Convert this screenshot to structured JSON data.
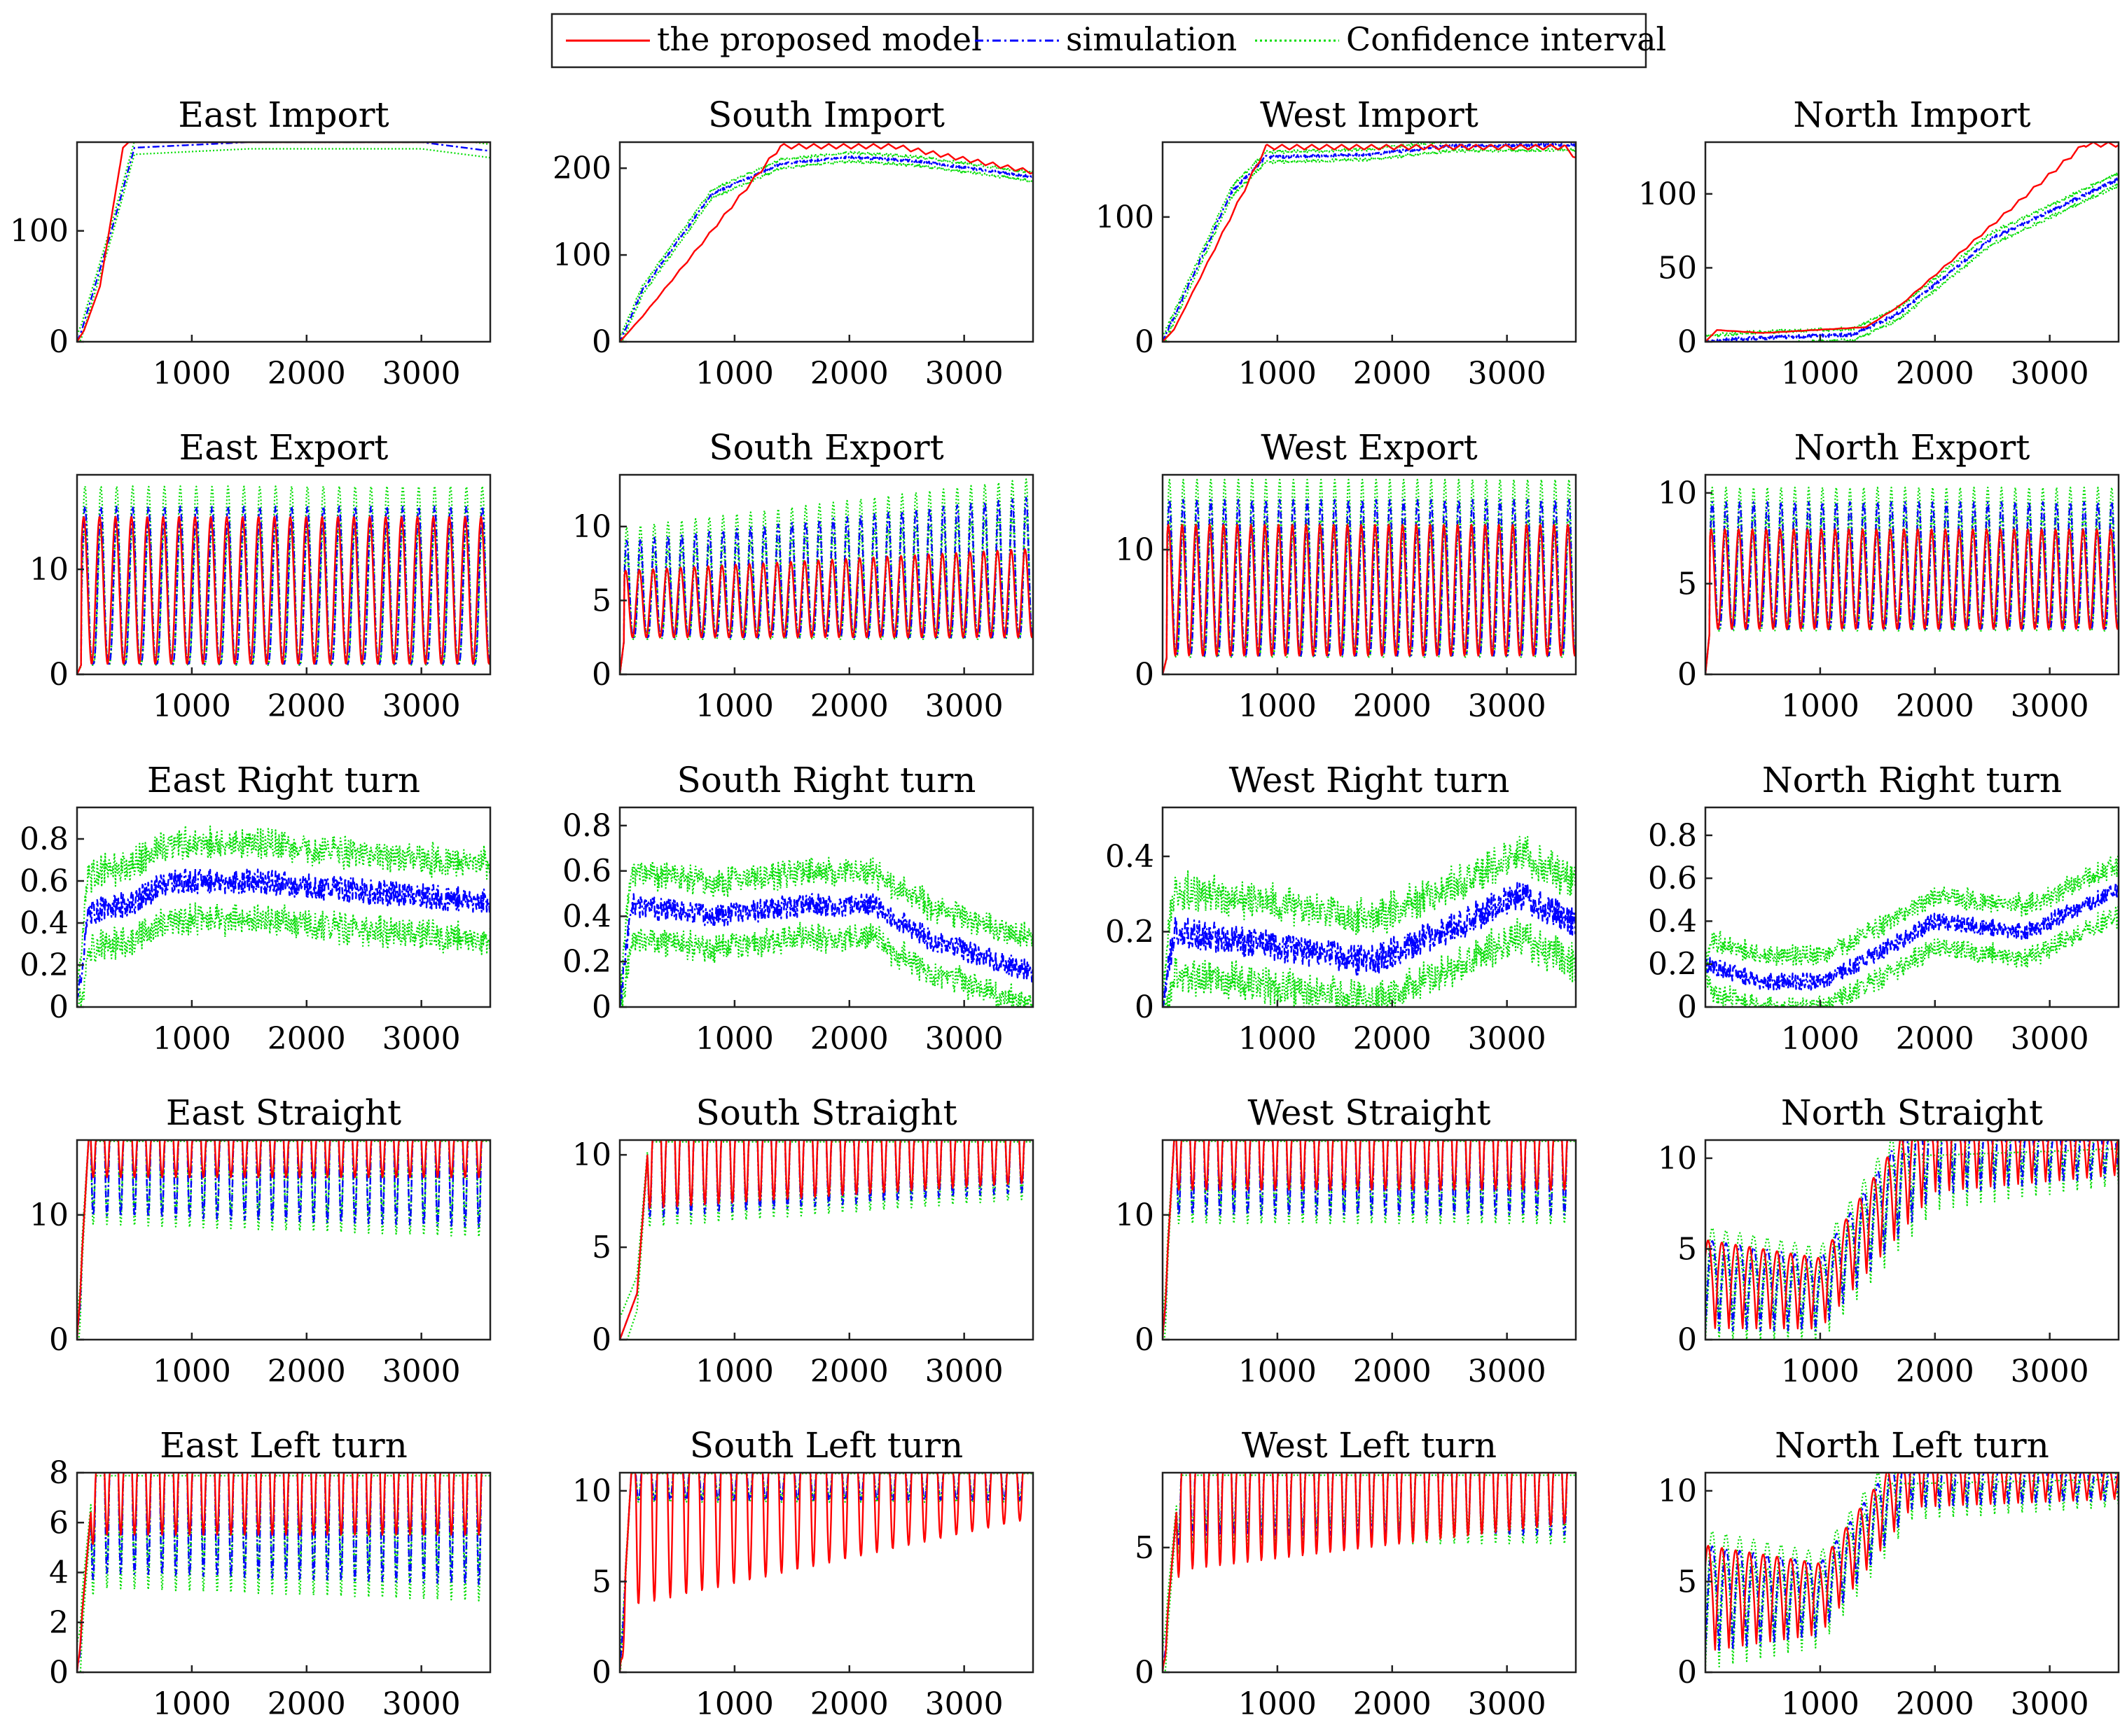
{
  "figure": {
    "legend": {
      "location": "top-center",
      "entries": [
        {
          "label": "the proposed model",
          "color": "#ff0000",
          "style": "solid"
        },
        {
          "label": "simulation",
          "color": "#0000ff",
          "style": "dash-dot"
        },
        {
          "label": "Confidence interval",
          "color": "#00dd00",
          "style": "dotted"
        }
      ]
    }
  },
  "chart_data": [
    {
      "type": "line",
      "title": "East Import",
      "xlabel": "",
      "ylabel": "",
      "xlim": [
        0,
        3600
      ],
      "ylim": [
        0,
        180
      ],
      "xticks": [
        1000,
        2000,
        3000
      ],
      "yticks": [
        0,
        100
      ],
      "grid": false,
      "pattern": "ramp",
      "params": {
        "red": [
          [
            0,
            0
          ],
          [
            60,
            10
          ],
          [
            200,
            50
          ],
          [
            400,
            175
          ],
          [
            450,
            180
          ],
          [
            3600,
            180
          ]
        ],
        "sim": [
          [
            0,
            0
          ],
          [
            40,
            10
          ],
          [
            300,
            100
          ],
          [
            500,
            175
          ],
          [
            1500,
            180
          ],
          [
            3000,
            180
          ],
          [
            3600,
            172
          ]
        ],
        "band": 6
      }
    },
    {
      "type": "line",
      "title": "South Import",
      "xlabel": "",
      "ylabel": "",
      "xlim": [
        0,
        3600
      ],
      "ylim": [
        0,
        230
      ],
      "xticks": [
        1000,
        2000,
        3000
      ],
      "yticks": [
        0,
        100,
        200
      ],
      "grid": false,
      "pattern": "ramp",
      "params": {
        "red": [
          [
            0,
            0
          ],
          [
            200,
            30
          ],
          [
            1400,
            228
          ],
          [
            2400,
            228
          ],
          [
            3600,
            198
          ]
        ],
        "sim": [
          [
            0,
            0
          ],
          [
            200,
            60
          ],
          [
            800,
            170
          ],
          [
            1400,
            205
          ],
          [
            2000,
            213
          ],
          [
            2600,
            208
          ],
          [
            3600,
            190
          ]
        ],
        "band": 5,
        "saw": 14
      }
    },
    {
      "type": "line",
      "title": "West Import",
      "xlabel": "",
      "ylabel": "",
      "xlim": [
        0,
        3600
      ],
      "ylim": [
        0,
        160
      ],
      "xticks": [
        1000,
        2000,
        3000
      ],
      "yticks": [
        0,
        100
      ],
      "grid": false,
      "pattern": "ramp",
      "params": {
        "red": [
          [
            0,
            0
          ],
          [
            100,
            10
          ],
          [
            900,
            158
          ],
          [
            3500,
            158
          ],
          [
            3600,
            150
          ]
        ],
        "sim": [
          [
            0,
            0
          ],
          [
            100,
            20
          ],
          [
            600,
            120
          ],
          [
            900,
            148
          ],
          [
            1800,
            150
          ],
          [
            2500,
            157
          ],
          [
            3600,
            158
          ]
        ],
        "band": 4,
        "saw": 10
      }
    },
    {
      "type": "line",
      "title": "North Import",
      "xlabel": "",
      "ylabel": "",
      "xlim": [
        0,
        3600
      ],
      "ylim": [
        0,
        135
      ],
      "xticks": [
        1000,
        2000,
        3000
      ],
      "yticks": [
        0,
        50,
        100
      ],
      "grid": false,
      "pattern": "ramp",
      "params": {
        "red": [
          [
            0,
            0
          ],
          [
            100,
            8
          ],
          [
            500,
            6
          ],
          [
            1400,
            10
          ],
          [
            1700,
            25
          ],
          [
            3300,
            135
          ],
          [
            3600,
            135
          ]
        ],
        "sim": [
          [
            0,
            0
          ],
          [
            300,
            2
          ],
          [
            1300,
            5
          ],
          [
            1700,
            20
          ],
          [
            2500,
            70
          ],
          [
            3600,
            110
          ]
        ],
        "band": 4,
        "saw": 8
      }
    },
    {
      "type": "line",
      "title": "East Export",
      "xlabel": "",
      "ylabel": "",
      "xlim": [
        0,
        3600
      ],
      "ylim": [
        0,
        19
      ],
      "xticks": [
        1000,
        2000,
        3000
      ],
      "yticks": [
        0,
        10
      ],
      "grid": false,
      "pattern": "osc",
      "params": {
        "cycles": 26,
        "lo": 1,
        "hiSim": 16,
        "hiRed": 15,
        "bandFrac": 0.12
      }
    },
    {
      "type": "line",
      "title": "South Export",
      "xlabel": "",
      "ylabel": "",
      "xlim": [
        0,
        3600
      ],
      "ylim": [
        0,
        13.5
      ],
      "xticks": [
        1000,
        2000,
        3000
      ],
      "yticks": [
        0,
        5,
        10
      ],
      "grid": false,
      "pattern": "osc",
      "params": {
        "cycles": 30,
        "lo": 2.5,
        "hiSim": [
          9,
          12
        ],
        "hiRed": [
          7,
          8.5
        ],
        "bandFrac": 0.12
      }
    },
    {
      "type": "line",
      "title": "West Export",
      "xlabel": "",
      "ylabel": "",
      "xlim": [
        0,
        3600
      ],
      "ylim": [
        0,
        16
      ],
      "xticks": [
        1000,
        2000,
        3000
      ],
      "yticks": [
        0,
        10
      ],
      "grid": false,
      "pattern": "osc",
      "params": {
        "cycles": 30,
        "lo": 1.5,
        "hiSim": 14,
        "hiRed": 12,
        "bandFrac": 0.12
      }
    },
    {
      "type": "line",
      "title": "North Export",
      "xlabel": "",
      "ylabel": "",
      "xlim": [
        0,
        3600
      ],
      "ylim": [
        0,
        11
      ],
      "xticks": [
        1000,
        2000,
        3000
      ],
      "yticks": [
        0,
        5,
        10
      ],
      "grid": false,
      "pattern": "osc",
      "params": {
        "cycles": 30,
        "lo": 2.5,
        "hiSim": 9.5,
        "hiRed": 8,
        "bandFrac": 0.1
      }
    },
    {
      "type": "line",
      "title": "East Right turn",
      "xlabel": "",
      "ylabel": "",
      "xlim": [
        0,
        3600
      ],
      "ylim": [
        0,
        0.95
      ],
      "xticks": [
        1000,
        2000,
        3000
      ],
      "yticks": [
        0,
        0.2,
        0.4,
        0.6,
        0.8
      ],
      "grid": false,
      "pattern": "noisy",
      "params": {
        "mean": [
          [
            0,
            0
          ],
          [
            100,
            0.45
          ],
          [
            500,
            0.5
          ],
          [
            800,
            0.6
          ],
          [
            1600,
            0.6
          ],
          [
            2500,
            0.55
          ],
          [
            3600,
            0.5
          ]
        ],
        "noise": 0.06,
        "band": 0.15
      }
    },
    {
      "type": "line",
      "title": "South Right turn",
      "xlabel": "",
      "ylabel": "",
      "xlim": [
        0,
        3600
      ],
      "ylim": [
        0,
        0.88
      ],
      "xticks": [
        1000,
        2000,
        3000
      ],
      "yticks": [
        0,
        0.2,
        0.4,
        0.6,
        0.8
      ],
      "grid": false,
      "pattern": "noisy",
      "params": {
        "mean": [
          [
            0,
            0
          ],
          [
            100,
            0.45
          ],
          [
            800,
            0.4
          ],
          [
            1600,
            0.45
          ],
          [
            2200,
            0.45
          ],
          [
            2700,
            0.3
          ],
          [
            3600,
            0.15
          ]
        ],
        "noise": 0.05,
        "band": 0.12
      }
    },
    {
      "type": "line",
      "title": "West Right turn",
      "xlabel": "",
      "ylabel": "",
      "xlim": [
        0,
        3600
      ],
      "ylim": [
        0,
        0.53
      ],
      "xticks": [
        1000,
        2000,
        3000
      ],
      "yticks": [
        0,
        0.2,
        0.4
      ],
      "grid": false,
      "pattern": "noisy",
      "params": {
        "mean": [
          [
            0,
            0
          ],
          [
            100,
            0.2
          ],
          [
            800,
            0.17
          ],
          [
            1800,
            0.12
          ],
          [
            2600,
            0.22
          ],
          [
            3100,
            0.3
          ],
          [
            3600,
            0.22
          ]
        ],
        "noise": 0.04,
        "band": 0.09
      }
    },
    {
      "type": "line",
      "title": "North Right turn",
      "xlabel": "",
      "ylabel": "",
      "xlim": [
        0,
        3600
      ],
      "ylim": [
        0,
        0.93
      ],
      "xticks": [
        1000,
        2000,
        3000
      ],
      "yticks": [
        0,
        0.2,
        0.4,
        0.6,
        0.8
      ],
      "grid": false,
      "pattern": "noisy",
      "params": {
        "mean": [
          [
            0,
            0.2
          ],
          [
            500,
            0.12
          ],
          [
            1000,
            0.12
          ],
          [
            1500,
            0.25
          ],
          [
            2000,
            0.4
          ],
          [
            2800,
            0.35
          ],
          [
            3600,
            0.55
          ]
        ],
        "noise": 0.04,
        "band": 0.1
      }
    },
    {
      "type": "line",
      "title": "East Straight",
      "xlabel": "",
      "ylabel": "",
      "xlim": [
        0,
        3600
      ],
      "ylim": [
        0,
        16
      ],
      "xticks": [
        1000,
        2000,
        3000
      ],
      "yticks": [
        0,
        10
      ],
      "grid": false,
      "pattern": "sat",
      "params": {
        "cap": 16,
        "cycles": 30,
        "dipSim": [
          10,
          9
        ],
        "dipRed": [
          13,
          13
        ],
        "bandFrac": 0.1,
        "ramp": 100
      }
    },
    {
      "type": "line",
      "title": "South Straight",
      "xlabel": "",
      "ylabel": "",
      "xlim": [
        0,
        3600
      ],
      "ylim": [
        0,
        10.8
      ],
      "xticks": [
        1000,
        2000,
        3000
      ],
      "yticks": [
        0,
        5,
        10
      ],
      "grid": false,
      "pattern": "sat",
      "params": {
        "cap": 10.8,
        "cycles": 30,
        "dipSim": [
          6.5,
          8
        ],
        "dipRed": [
          7,
          8.5
        ],
        "bandFrac": 0.1,
        "ramp": 150,
        "early": 2.5
      }
    },
    {
      "type": "line",
      "title": "West Straight",
      "xlabel": "",
      "ylabel": "",
      "xlim": [
        0,
        3600
      ],
      "ylim": [
        0,
        16
      ],
      "xticks": [
        1000,
        2000,
        3000
      ],
      "yticks": [
        0,
        10
      ],
      "grid": false,
      "pattern": "sat",
      "params": {
        "cap": 16,
        "cycles": 30,
        "dipSim": [
          10,
          10
        ],
        "dipRed": [
          12,
          12
        ],
        "bandFrac": 0.1,
        "ramp": 100
      }
    },
    {
      "type": "line",
      "title": "North Straight",
      "xlabel": "",
      "ylabel": "",
      "xlim": [
        0,
        3600
      ],
      "ylim": [
        0,
        11
      ],
      "xticks": [
        1000,
        2000,
        3000
      ],
      "yticks": [
        0,
        5,
        10
      ],
      "grid": false,
      "pattern": "grow",
      "params": {
        "cap": 11,
        "cycles": 30,
        "base": [
          [
            0,
            0.5
          ],
          [
            1000,
            0.5
          ],
          [
            2000,
            8
          ],
          [
            3600,
            9
          ]
        ],
        "amp": [
          [
            0,
            5
          ],
          [
            1000,
            4
          ],
          [
            2000,
            6
          ],
          [
            3600,
            3
          ]
        ],
        "bandFrac": 0.12
      }
    },
    {
      "type": "line",
      "title": "East Left turn",
      "xlabel": "",
      "ylabel": "",
      "xlim": [
        0,
        3600
      ],
      "ylim": [
        0,
        8
      ],
      "xticks": [
        1000,
        2000,
        3000
      ],
      "yticks": [
        0,
        2,
        4,
        6,
        8
      ],
      "grid": false,
      "pattern": "sat",
      "params": {
        "cap": 8,
        "cycles": 30,
        "dipSim": [
          4,
          3.5
        ],
        "dipRed": [
          5.5,
          5.5
        ],
        "bandFrac": 0.12,
        "ramp": 150
      }
    },
    {
      "type": "line",
      "title": "South Left turn",
      "xlabel": "",
      "ylabel": "",
      "xlim": [
        0,
        3600
      ],
      "ylim": [
        0,
        11
      ],
      "xticks": [
        1000,
        2000,
        3000
      ],
      "yticks": [
        0,
        5,
        10
      ],
      "grid": false,
      "pattern": "sat",
      "params": {
        "cap": 11,
        "cycles": 26,
        "dipSim": [
          9.5,
          9.5
        ],
        "dipRed": [
          3.5,
          8.5
        ],
        "bandFrac": 0.05,
        "ramp": 100
      }
    },
    {
      "type": "line",
      "title": "West Left turn",
      "xlabel": "",
      "ylabel": "",
      "xlim": [
        0,
        3600
      ],
      "ylim": [
        0,
        8
      ],
      "xticks": [
        1000,
        2000,
        3000
      ],
      "yticks": [
        0,
        5
      ],
      "grid": false,
      "pattern": "sat",
      "params": {
        "cap": 8,
        "cycles": 30,
        "dipSim": [
          5.5,
          5.5
        ],
        "dipRed": [
          4,
          6
        ],
        "bandFrac": 0.1,
        "ramp": 150
      }
    },
    {
      "type": "line",
      "title": "North Left turn",
      "xlabel": "",
      "ylabel": "",
      "xlim": [
        0,
        3600
      ],
      "ylim": [
        0,
        11
      ],
      "xticks": [
        1000,
        2000,
        3000
      ],
      "yticks": [
        0,
        5,
        10
      ],
      "grid": false,
      "pattern": "grow",
      "params": {
        "cap": 11,
        "cycles": 30,
        "base": [
          [
            0,
            1
          ],
          [
            1000,
            2
          ],
          [
            1800,
            9
          ],
          [
            3600,
            9.5
          ]
        ],
        "amp": [
          [
            0,
            6
          ],
          [
            1000,
            4
          ],
          [
            1800,
            4
          ],
          [
            3600,
            2
          ]
        ],
        "bandFrac": 0.12
      }
    }
  ]
}
